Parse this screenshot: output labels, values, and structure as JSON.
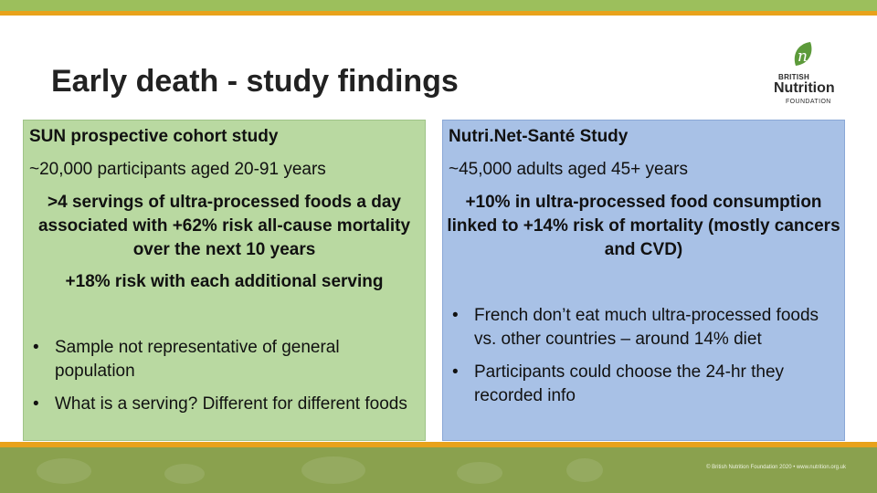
{
  "slide": {
    "title": "Early death - study findings"
  },
  "logo": {
    "mark": "n",
    "line1": "BRITISH",
    "line2": "Nutrition",
    "line3": "FOUNDATION"
  },
  "left_panel": {
    "heading": "SUN prospective cohort study",
    "participants": "~20,000 participants aged 20-91 years",
    "finding": ">4 servings of ultra-processed foods a day associated with +62% risk all-cause mortality over the next 10 years",
    "additional": "+18% risk with each additional serving",
    "bullets": [
      "Sample not representative of general population",
      "What is a serving? Different for different foods"
    ]
  },
  "right_panel": {
    "heading": "Nutri.Net-Santé Study",
    "participants": "~45,000 adults aged 45+ years",
    "finding": "+10% in ultra-processed food consumption linked to +14% risk of mortality (mostly cancers and CVD)",
    "bullets": [
      "French don’t eat much ultra-processed foods vs. other countries – around 14% diet",
      "Participants could choose the 24-hr they recorded info"
    ]
  },
  "footer": {
    "text": "© British Nutrition Foundation 2020 • www.nutrition.org.uk"
  },
  "colors": {
    "left_panel_bg": "#b9d9a1",
    "right_panel_bg": "#a8c1e6",
    "accent_orange": "#e8a21b",
    "brand_green": "#9cbf5c"
  }
}
